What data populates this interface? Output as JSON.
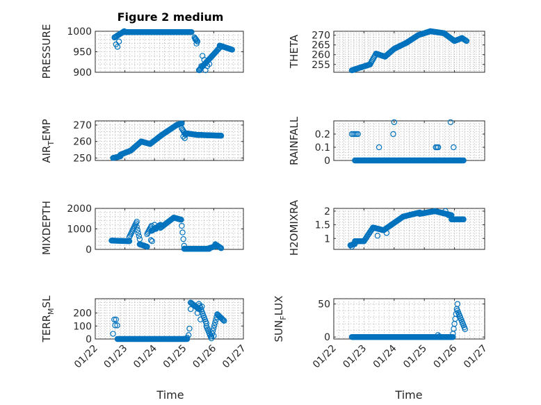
{
  "chart_data": [
    {
      "type": "scatter",
      "id": "pressure",
      "title": "Figure 2 medium",
      "ylabel": "PRESSURE",
      "ylim": [
        900,
        1000
      ],
      "yticks": [
        900,
        950,
        1000
      ],
      "ytick_labels": [
        "900",
        "950",
        "1000"
      ],
      "xlim": [
        0,
        5
      ],
      "xtick_labels": [
        "01/22",
        "01/23",
        "01/24",
        "01/25",
        "01/26",
        "01/27"
      ],
      "xlabel": "",
      "segments": [
        [
          0.65,
          0.98,
          985,
          1000
        ],
        [
          1.0,
          3.25,
          998,
          998
        ],
        [
          3.35,
          3.45,
          985,
          975
        ],
        [
          3.5,
          3.95,
          905,
          940
        ],
        [
          3.95,
          4.2,
          940,
          960
        ],
        [
          4.2,
          4.62,
          965,
          955
        ]
      ],
      "points": [
        [
          0.65,
          985
        ],
        [
          0.7,
          968
        ],
        [
          0.75,
          962
        ],
        [
          0.8,
          975
        ],
        [
          3.38,
          980
        ],
        [
          3.42,
          970
        ],
        [
          3.52,
          905
        ],
        [
          3.58,
          915
        ],
        [
          3.62,
          940
        ],
        [
          3.68,
          930
        ],
        [
          3.72,
          905
        ],
        [
          3.78,
          915
        ],
        [
          3.85,
          920
        ]
      ]
    },
    {
      "type": "scatter",
      "id": "theta",
      "title": "",
      "ylabel": "THETA",
      "ylim": [
        251,
        272
      ],
      "yticks": [
        255,
        260,
        265,
        270
      ],
      "ytick_labels": [
        "255",
        "260",
        "265",
        "270"
      ],
      "xlim": [
        0,
        5
      ],
      "xtick_labels": [
        "01/22",
        "01/23",
        "01/24",
        "01/25",
        "01/26",
        "01/27"
      ],
      "xlabel": "",
      "segments": [
        [
          0.6,
          0.9,
          252,
          253.5
        ],
        [
          0.9,
          1.2,
          253.5,
          255
        ],
        [
          1.2,
          1.4,
          255,
          260.5
        ],
        [
          1.4,
          1.7,
          260.5,
          259
        ],
        [
          1.7,
          2.0,
          259,
          263
        ],
        [
          2.0,
          2.4,
          263,
          266
        ],
        [
          2.4,
          2.8,
          266,
          270
        ],
        [
          2.8,
          3.2,
          270,
          272
        ],
        [
          3.2,
          3.65,
          272,
          271
        ],
        [
          3.65,
          4.0,
          271,
          267
        ],
        [
          4.0,
          4.25,
          267,
          268.5
        ],
        [
          4.25,
          4.4,
          268.5,
          267
        ]
      ],
      "points": []
    },
    {
      "type": "scatter",
      "id": "air_temp",
      "title": "",
      "ylabel": "AIR_TEMP",
      "ylim": [
        248.5,
        272.5
      ],
      "yticks": [
        250,
        260,
        270
      ],
      "ytick_labels": [
        "250",
        "260",
        "270"
      ],
      "xlim": [
        0,
        5
      ],
      "xtick_labels": [
        "01/22",
        "01/23",
        "01/24",
        "01/25",
        "01/26",
        "01/27"
      ],
      "xlabel": "",
      "segments": [
        [
          0.6,
          0.85,
          250,
          251
        ],
        [
          0.85,
          1.2,
          252,
          254.5
        ],
        [
          1.2,
          1.55,
          254.5,
          260
        ],
        [
          1.55,
          1.85,
          260,
          258.5
        ],
        [
          1.85,
          2.25,
          258.5,
          264
        ],
        [
          2.25,
          2.75,
          264,
          270
        ],
        [
          2.75,
          2.92,
          270,
          271
        ],
        [
          2.92,
          3.05,
          268,
          264
        ],
        [
          3.05,
          3.45,
          265,
          264
        ],
        [
          3.45,
          4.25,
          264,
          263.5
        ]
      ],
      "points": [
        [
          2.97,
          263
        ],
        [
          3.02,
          262
        ]
      ]
    },
    {
      "type": "scatter",
      "id": "rainfall",
      "title": "",
      "ylabel": "RAINFALL",
      "ylim": [
        0,
        0.3
      ],
      "yticks": [
        0,
        0.1,
        0.2
      ],
      "ytick_labels": [
        "0",
        "0.1",
        "0.2"
      ],
      "xlim": [
        0,
        5
      ],
      "xtick_labels": [
        "01/22",
        "01/23",
        "01/24",
        "01/25",
        "01/26",
        "01/27"
      ],
      "xlabel": "",
      "segments": [
        [
          0.7,
          4.3,
          0,
          0
        ]
      ],
      "points": [
        [
          0.6,
          0.2
        ],
        [
          0.65,
          0.2
        ],
        [
          0.7,
          0.2
        ],
        [
          0.75,
          0.2
        ],
        [
          0.8,
          0.2
        ],
        [
          1.5,
          0.1
        ],
        [
          1.97,
          0.2
        ],
        [
          2.0,
          0.29
        ],
        [
          3.38,
          0.1
        ],
        [
          3.42,
          0.1
        ],
        [
          3.46,
          0.1
        ],
        [
          3.87,
          0.29
        ],
        [
          3.97,
          0.1
        ]
      ]
    },
    {
      "type": "scatter",
      "id": "mixdepth",
      "title": "",
      "ylabel": "MIXDEPTH",
      "ylim": [
        0,
        2000
      ],
      "yticks": [
        0,
        1000,
        2000
      ],
      "ytick_labels": [
        "0",
        "1000",
        "2000"
      ],
      "xlim": [
        0,
        5
      ],
      "xtick_labels": [
        "01/22",
        "01/23",
        "01/24",
        "01/25",
        "01/26",
        "01/27"
      ],
      "xlabel": "",
      "segments": [
        [
          0.55,
          1.15,
          430,
          400
        ],
        [
          1.15,
          1.4,
          600,
          1350
        ],
        [
          1.4,
          1.5,
          1100,
          500
        ],
        [
          1.5,
          1.75,
          250,
          130
        ],
        [
          1.75,
          1.9,
          750,
          1150
        ],
        [
          1.9,
          2.2,
          900,
          1200
        ],
        [
          2.2,
          2.65,
          1050,
          1550
        ],
        [
          2.65,
          2.9,
          1550,
          1450
        ],
        [
          2.92,
          3.0,
          1150,
          180
        ],
        [
          3.0,
          3.85,
          30,
          30
        ],
        [
          3.85,
          4.05,
          60,
          150
        ],
        [
          4.05,
          4.25,
          250,
          60
        ]
      ],
      "points": [
        [
          2.0,
          1200
        ],
        [
          2.05,
          1000
        ],
        [
          1.88,
          450
        ],
        [
          1.92,
          400
        ]
      ]
    },
    {
      "type": "scatter",
      "id": "h2omixra",
      "title": "",
      "ylabel": "H2OMIXRA",
      "ylim": [
        0.6,
        2.1
      ],
      "yticks": [
        1,
        1.5,
        2
      ],
      "ytick_labels": [
        "1",
        "1.5",
        "2"
      ],
      "xlim": [
        0,
        5
      ],
      "xtick_labels": [
        "01/22",
        "01/23",
        "01/24",
        "01/25",
        "01/26",
        "01/27"
      ],
      "xlabel": "",
      "segments": [
        [
          0.55,
          0.7,
          0.75,
          0.8
        ],
        [
          0.7,
          1.0,
          0.9,
          0.9
        ],
        [
          1.0,
          1.3,
          0.9,
          1.4
        ],
        [
          1.3,
          1.65,
          1.4,
          1.3
        ],
        [
          1.65,
          2.3,
          1.3,
          1.8
        ],
        [
          2.3,
          2.85,
          1.8,
          1.95
        ],
        [
          2.85,
          3.35,
          1.9,
          2.0
        ],
        [
          3.35,
          3.9,
          2.0,
          1.85
        ],
        [
          3.9,
          4.3,
          1.7,
          1.7
        ]
      ],
      "points": [
        [
          0.6,
          0.7
        ],
        [
          1.45,
          1.1
        ],
        [
          1.75,
          1.2
        ],
        [
          3.7,
          2.0
        ],
        [
          3.8,
          1.85
        ]
      ]
    },
    {
      "type": "scatter",
      "id": "terr_msl",
      "title": "",
      "ylabel": "TERR_MSL",
      "ylim": [
        0,
        310
      ],
      "yticks": [
        0,
        100,
        200
      ],
      "ytick_labels": [
        "0",
        "100",
        "200"
      ],
      "xlim": [
        0,
        5
      ],
      "xtick_labels": [
        "01/22",
        "01/23",
        "01/24",
        "01/25",
        "01/26",
        "01/27"
      ],
      "xlabel": "",
      "segments": [
        [
          0.75,
          3.1,
          0,
          0
        ],
        [
          3.22,
          3.5,
          280,
          230
        ],
        [
          3.5,
          3.75,
          270,
          120
        ],
        [
          3.75,
          3.92,
          100,
          5
        ],
        [
          3.92,
          4.12,
          20,
          190
        ],
        [
          4.12,
          4.35,
          190,
          140
        ]
      ],
      "points": [
        [
          0.6,
          40
        ],
        [
          0.64,
          150
        ],
        [
          0.67,
          105
        ],
        [
          0.7,
          150
        ],
        [
          0.74,
          105
        ],
        [
          3.1,
          10
        ],
        [
          3.15,
          30
        ],
        [
          3.18,
          80
        ],
        [
          3.22,
          230
        ],
        [
          3.45,
          200
        ],
        [
          3.6,
          250
        ],
        [
          3.55,
          150
        ],
        [
          4.0,
          25
        ]
      ]
    },
    {
      "type": "scatter",
      "id": "sun_flux",
      "title": "",
      "ylabel": "SUN_FLUX",
      "ylim": [
        -3,
        58
      ],
      "yticks": [
        0,
        50
      ],
      "ytick_labels": [
        "0",
        "50"
      ],
      "xlim": [
        0,
        5
      ],
      "xtick_labels": [
        "01/22",
        "01/23",
        "01/24",
        "01/25",
        "01/26",
        "01/27"
      ],
      "xlabel": "",
      "segments": [
        [
          0.6,
          3.95,
          0,
          0
        ],
        [
          3.95,
          4.1,
          5,
          50
        ],
        [
          4.1,
          4.35,
          40,
          12
        ]
      ],
      "points": [
        [
          3.45,
          3
        ],
        [
          3.5,
          1
        ]
      ]
    }
  ],
  "labels": {
    "title": "Figure 2 medium",
    "xlabel_left": "Time",
    "xlabel_right": "Time",
    "ylabels": {
      "pressure": "PRESSURE",
      "theta": "THETA",
      "air_temp_main": "AIR",
      "air_temp_sub": "T",
      "air_temp_tail": "EMP",
      "rainfall": "RAINFALL",
      "mixdepth": "MIXDEPTH",
      "h2omixra": "H2OMIXRA",
      "terr_main": "TERR",
      "terr_sub": "M",
      "terr_tail": "SL",
      "sun_main": "SUN",
      "sun_sub": "F",
      "sun_tail": "LUX"
    }
  },
  "colors": {
    "marker": "#0072BD",
    "axis": "#262626",
    "grid": "#b8b8b8"
  }
}
